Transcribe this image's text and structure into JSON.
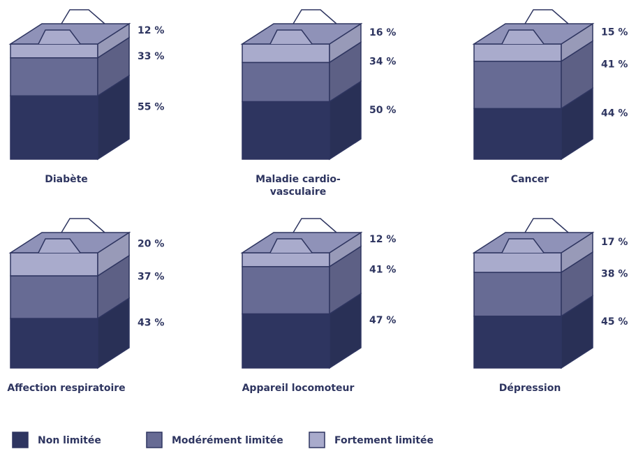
{
  "chart_data": {
    "type": "stacked-box",
    "categories": [
      "Diabète",
      "Maladie cardio-vasculaire",
      "Cancer",
      "Affection respiratoire",
      "Appareil locomoteur",
      "Dépression"
    ],
    "series": [
      {
        "name": "Non limitée",
        "color": "#2e3560",
        "values": [
          55,
          50,
          44,
          43,
          47,
          45
        ],
        "value_labels": [
          "55 %",
          "50 %",
          "44 %",
          "43 %",
          "47 %",
          "45 %"
        ]
      },
      {
        "name": "Modérément limitée",
        "color": "#676b94",
        "values": [
          33,
          34,
          41,
          37,
          41,
          38
        ],
        "value_labels": [
          "33 %",
          "34 %",
          "41 %",
          "37 %",
          "41 %",
          "38 %"
        ]
      },
      {
        "name": "Fortement limitée",
        "color": "#a9abcc",
        "values": [
          12,
          16,
          15,
          20,
          12,
          17
        ],
        "value_labels": [
          "12 %",
          "16 %",
          "15 %",
          "20 %",
          "12 %",
          "17 %"
        ]
      }
    ],
    "ylim": [
      0,
      100
    ]
  }
}
